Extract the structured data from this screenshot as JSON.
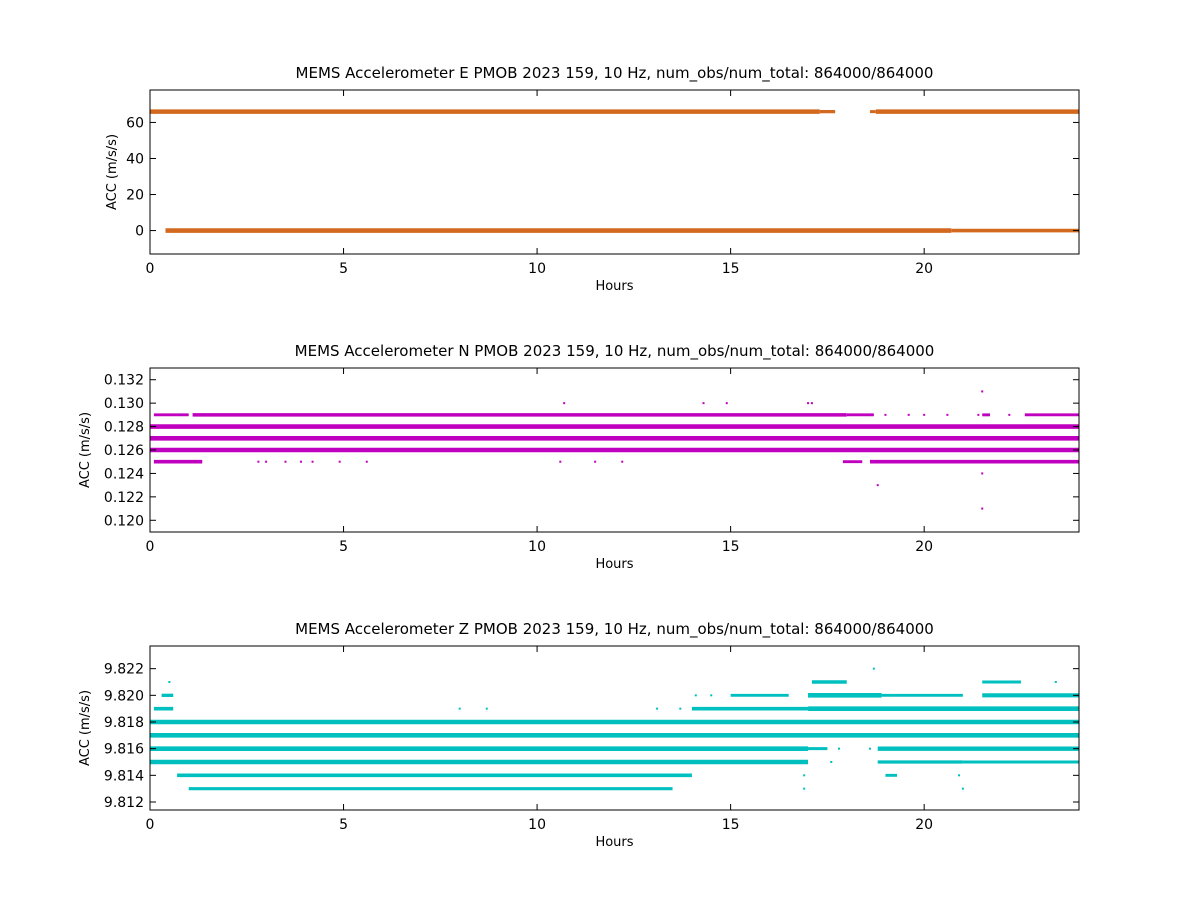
{
  "chart_data": [
    {
      "type": "scatter",
      "title": "MEMS Accelerometer E PMOB 2023 159, 10 Hz, num_obs/num_total: 864000/864000",
      "xlabel": "Hours",
      "ylabel": "ACC (m/s/s)",
      "xlim": [
        0,
        24
      ],
      "ylim": [
        -13,
        78
      ],
      "xticks": [
        "0",
        "5",
        "10",
        "15",
        "20"
      ],
      "xtick_values": [
        0,
        5,
        10,
        15,
        20
      ],
      "yticks": [
        "0",
        "20",
        "40",
        "60"
      ],
      "ytick_values": [
        0,
        20,
        40,
        60
      ],
      "color": "#d2691e",
      "grid": false,
      "series": [
        {
          "bands": [
            {
              "y": 66,
              "segments": [
                [
                  0,
                  17.3,
                  1.0
                ],
                [
                  17.3,
                  17.7,
                  0.5
                ],
                [
                  18.6,
                  18.75,
                  0.4
                ],
                [
                  18.75,
                  24,
                  1.0
                ]
              ]
            },
            {
              "y": 0,
              "segments": [
                [
                  0.4,
                  20.7,
                  1.0
                ],
                [
                  20.7,
                  24,
                  0.6
                ]
              ]
            }
          ],
          "points": []
        }
      ]
    },
    {
      "type": "scatter",
      "title": "MEMS Accelerometer N PMOB 2023 159, 10 Hz, num_obs/num_total: 864000/864000",
      "xlabel": "Hours",
      "ylabel": "ACC (m/s/s)",
      "xlim": [
        0,
        24
      ],
      "ylim": [
        0.119,
        0.133
      ],
      "xticks": [
        "0",
        "5",
        "10",
        "15",
        "20"
      ],
      "xtick_values": [
        0,
        5,
        10,
        15,
        20
      ],
      "yticks": [
        "0.120",
        "0.122",
        "0.124",
        "0.126",
        "0.128",
        "0.130",
        "0.132"
      ],
      "ytick_values": [
        0.12,
        0.122,
        0.124,
        0.126,
        0.128,
        0.13,
        0.132
      ],
      "color": "#bf00bf",
      "grid": false,
      "series": [
        {
          "bands": [
            {
              "y": 0.129,
              "segments": [
                [
                  0.1,
                  1.0,
                  0.35
                ],
                [
                  1.1,
                  18.0,
                  0.6
                ],
                [
                  18.0,
                  18.7,
                  0.35
                ],
                [
                  21.5,
                  21.7,
                  0.35
                ],
                [
                  22.6,
                  24,
                  0.35
                ]
              ]
            },
            {
              "y": 0.128,
              "segments": [
                [
                  0,
                  24,
                  1.0
                ]
              ]
            },
            {
              "y": 0.127,
              "segments": [
                [
                  0,
                  24,
                  1.0
                ]
              ]
            },
            {
              "y": 0.126,
              "segments": [
                [
                  0,
                  24,
                  1.0
                ]
              ]
            },
            {
              "y": 0.125,
              "segments": [
                [
                  0.1,
                  1.35,
                  0.6
                ],
                [
                  17.9,
                  18.4,
                  0.35
                ],
                [
                  18.6,
                  24,
                  0.6
                ]
              ]
            }
          ],
          "points": [
            [
              10.7,
              0.13
            ],
            [
              14.3,
              0.13
            ],
            [
              14.9,
              0.13
            ],
            [
              17.0,
              0.13
            ],
            [
              17.1,
              0.13
            ],
            [
              21.5,
              0.131
            ],
            [
              18.8,
              0.123
            ],
            [
              21.5,
              0.124
            ],
            [
              21.5,
              0.121
            ],
            [
              19.0,
              0.129
            ],
            [
              19.6,
              0.129
            ],
            [
              20.0,
              0.129
            ],
            [
              20.6,
              0.129
            ],
            [
              21.4,
              0.129
            ],
            [
              22.2,
              0.129
            ],
            [
              2.8,
              0.125
            ],
            [
              3.0,
              0.125
            ],
            [
              3.5,
              0.125
            ],
            [
              3.9,
              0.125
            ],
            [
              4.2,
              0.125
            ],
            [
              4.9,
              0.125
            ],
            [
              5.6,
              0.125
            ],
            [
              10.6,
              0.125
            ],
            [
              11.5,
              0.125
            ],
            [
              12.2,
              0.125
            ]
          ]
        }
      ]
    },
    {
      "type": "scatter",
      "title": "MEMS Accelerometer Z PMOB 2023 159, 10 Hz, num_obs/num_total: 864000/864000",
      "xlabel": "Hours",
      "ylabel": "ACC (m/s/s)",
      "xlim": [
        0,
        24
      ],
      "ylim": [
        9.8114,
        9.8237
      ],
      "xticks": [
        "0",
        "5",
        "10",
        "15",
        "20"
      ],
      "xtick_values": [
        0,
        5,
        10,
        15,
        20
      ],
      "yticks": [
        "9.812",
        "9.814",
        "9.816",
        "9.818",
        "9.820",
        "9.822"
      ],
      "ytick_values": [
        9.812,
        9.814,
        9.816,
        9.818,
        9.82,
        9.822
      ],
      "color": "#00bfbf",
      "grid": false,
      "series": [
        {
          "bands": [
            {
              "y": 9.821,
              "segments": [
                [
                  17.1,
                  18.0,
                  0.6
                ],
                [
                  21.5,
                  22.5,
                  0.35
                ]
              ]
            },
            {
              "y": 9.82,
              "segments": [
                [
                  0.3,
                  0.6,
                  0.5
                ],
                [
                  15.0,
                  16.5,
                  0.35
                ],
                [
                  17.0,
                  18.9,
                  1.0
                ],
                [
                  18.9,
                  21.0,
                  0.35
                ],
                [
                  21.5,
                  24,
                  0.8
                ]
              ]
            },
            {
              "y": 9.819,
              "segments": [
                [
                  0.1,
                  0.6,
                  0.6
                ],
                [
                  14.0,
                  17.0,
                  0.6
                ],
                [
                  17.0,
                  24,
                  1.0
                ]
              ]
            },
            {
              "y": 9.818,
              "segments": [
                [
                  0,
                  24,
                  1.0
                ]
              ]
            },
            {
              "y": 9.817,
              "segments": [
                [
                  0,
                  24,
                  1.0
                ]
              ]
            },
            {
              "y": 9.816,
              "segments": [
                [
                  0,
                  17.0,
                  1.0
                ],
                [
                  17.0,
                  17.5,
                  0.4
                ],
                [
                  18.8,
                  24,
                  0.9
                ]
              ]
            },
            {
              "y": 9.815,
              "segments": [
                [
                  0,
                  17.0,
                  1.0
                ],
                [
                  18.8,
                  21.0,
                  0.5
                ],
                [
                  21.0,
                  24,
                  0.35
                ]
              ]
            },
            {
              "y": 9.814,
              "segments": [
                [
                  0.7,
                  14.0,
                  0.6
                ],
                [
                  19.0,
                  19.3,
                  0.35
                ]
              ]
            },
            {
              "y": 9.813,
              "segments": [
                [
                  1.0,
                  13.5,
                  0.45
                ]
              ]
            }
          ],
          "points": [
            [
              0.5,
              9.821
            ],
            [
              18.7,
              9.822
            ],
            [
              23.4,
              9.821
            ],
            [
              8.0,
              9.819
            ],
            [
              8.7,
              9.819
            ],
            [
              13.1,
              9.819
            ],
            [
              13.7,
              9.819
            ],
            [
              14.1,
              9.82
            ],
            [
              14.5,
              9.82
            ],
            [
              16.9,
              9.813
            ],
            [
              21.0,
              9.813
            ],
            [
              16.9,
              9.814
            ],
            [
              20.9,
              9.814
            ],
            [
              17.6,
              9.815
            ],
            [
              18.2,
              9.817
            ],
            [
              18.6,
              9.816
            ],
            [
              17.8,
              9.816
            ],
            [
              22.3,
              9.815
            ],
            [
              23.0,
              9.815
            ]
          ]
        }
      ]
    }
  ]
}
